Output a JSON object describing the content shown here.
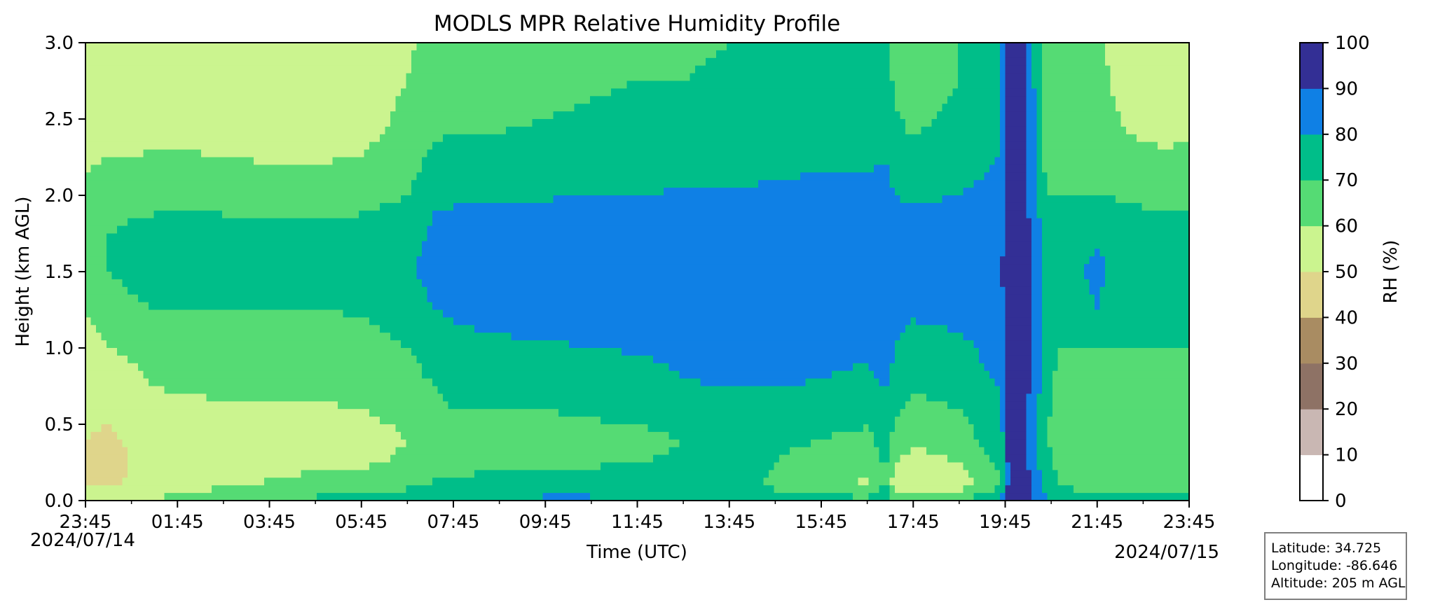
{
  "chart_data": {
    "type": "heatmap",
    "title": "MODLS MPR Relative Humidity Profile",
    "xlabel": "Time (UTC)",
    "ylabel": "Height (km AGL)",
    "x_ticks": [
      "23:45",
      "01:45",
      "03:45",
      "05:45",
      "07:45",
      "09:45",
      "11:45",
      "13:45",
      "15:45",
      "17:45",
      "19:45",
      "21:45",
      "23:45"
    ],
    "x_start_date": "2024/07/14",
    "x_end_date": "2024/07/15",
    "y_ticks": [
      "0.0",
      "0.5",
      "1.0",
      "1.5",
      "2.0",
      "2.5",
      "3.0"
    ],
    "ylim": [
      0,
      3.0
    ],
    "colorbar": {
      "label": "RH (%)",
      "ticks": [
        "0",
        "10",
        "20",
        "30",
        "40",
        "50",
        "60",
        "70",
        "80",
        "90",
        "100"
      ],
      "levels": [
        0,
        10,
        20,
        30,
        40,
        50,
        60,
        70,
        80,
        90,
        100
      ],
      "colors": [
        "#ffffff",
        "#c9b7b3",
        "#8e7265",
        "#a98c62",
        "#dfd58b",
        "#cbf48f",
        "#55db74",
        "#00be89",
        "#0f80e5",
        "#332f95"
      ]
    },
    "rh_grid": {
      "times_h": [
        0,
        0.5,
        1.0,
        1.5,
        2.0,
        3.0,
        4.0,
        5.0,
        6.0,
        7.0,
        7.4,
        7.6,
        8.0,
        9.0,
        10.0,
        11.0,
        12.0,
        13.0,
        14.0,
        15.0,
        16.0,
        17.0,
        17.4,
        17.6,
        18.0,
        19.0,
        19.9,
        20.1,
        20.4,
        20.9,
        21.2,
        21.6,
        22.0,
        22.5,
        23.0,
        23.5,
        24.0
      ],
      "heights_km": [
        0.0,
        0.1,
        0.25,
        0.4,
        0.6,
        0.8,
        1.0,
        1.25,
        1.5,
        1.75,
        2.0,
        2.25,
        2.5,
        2.75,
        3.0
      ],
      "rh": [
        [
          62,
          48,
          46,
          50,
          53,
          55,
          57,
          60,
          64,
          66,
          63,
          58,
          54,
          51,
          52
        ],
        [
          60,
          47,
          44,
          48,
          52,
          55,
          60,
          65,
          70,
          70,
          65,
          60,
          55,
          52,
          53
        ],
        [
          58,
          52,
          50,
          53,
          55,
          58,
          62,
          68,
          73,
          72,
          66,
          60,
          55,
          52,
          53
        ],
        [
          59,
          54,
          55,
          56,
          58,
          61,
          64,
          70,
          74,
          73,
          67,
          61,
          56,
          54,
          55
        ],
        [
          64,
          57,
          56,
          56,
          59,
          61,
          64,
          70,
          74,
          73,
          67,
          61,
          56,
          53,
          54
        ],
        [
          68,
          58,
          56,
          56,
          59,
          62,
          64,
          70,
          74,
          73,
          67,
          60,
          55,
          52,
          51
        ],
        [
          70,
          61,
          57,
          56,
          59,
          62,
          64,
          70,
          75,
          73,
          66,
          59,
          54,
          51,
          50
        ],
        [
          72,
          64,
          57,
          55,
          59,
          63,
          64,
          70,
          75,
          73,
          66,
          59,
          53,
          50,
          50
        ],
        [
          74,
          66,
          58,
          56,
          60,
          64,
          65,
          71,
          76,
          74,
          66,
          60,
          55,
          53,
          55
        ],
        [
          76,
          68,
          62,
          60,
          63,
          67,
          70,
          76,
          78,
          77,
          70,
          66,
          63,
          60,
          58
        ],
        [
          78,
          70,
          64,
          63,
          66,
          70,
          72,
          78,
          82,
          80,
          74,
          70,
          67,
          64,
          62
        ],
        [
          79,
          71,
          66,
          65,
          68,
          71,
          73,
          80,
          85,
          84,
          76,
          71,
          68,
          66,
          64
        ],
        [
          80,
          72,
          67,
          66,
          70,
          73,
          76,
          82,
          86,
          85,
          78,
          72,
          69,
          66,
          64
        ],
        [
          81,
          73,
          68,
          67,
          70,
          74,
          78,
          84,
          87,
          86,
          79,
          72,
          69,
          67,
          65
        ],
        [
          82,
          74,
          69,
          68,
          70,
          75,
          79,
          84,
          88,
          87,
          79,
          73,
          70,
          68,
          66
        ],
        [
          82,
          74,
          69,
          68,
          71,
          75,
          80,
          85,
          88,
          87,
          80,
          74,
          71,
          69,
          68
        ],
        [
          81,
          74,
          70,
          68,
          72,
          76,
          81,
          85,
          88,
          87,
          80,
          74,
          72,
          70,
          69
        ],
        [
          79,
          74,
          71,
          70,
          75,
          80,
          83,
          86,
          88,
          87,
          81,
          75,
          72,
          70,
          69
        ],
        [
          76,
          72,
          72,
          72,
          76,
          82,
          84,
          87,
          88,
          86,
          81,
          75,
          72,
          71,
          70
        ],
        [
          73,
          69,
          70,
          72,
          76,
          82,
          84,
          86,
          88,
          86,
          82,
          77,
          74,
          72,
          71
        ],
        [
          74,
          66,
          66,
          70,
          74,
          80,
          83,
          86,
          88,
          87,
          83,
          78,
          75,
          73,
          72
        ],
        [
          73,
          58,
          62,
          68,
          73,
          78,
          82,
          86,
          89,
          88,
          83,
          78,
          76,
          74,
          72
        ],
        [
          80,
          70,
          72,
          74,
          78,
          82,
          86,
          88,
          88,
          87,
          84,
          80,
          77,
          75,
          73
        ],
        [
          70,
          55,
          60,
          66,
          72,
          77,
          80,
          85,
          88,
          86,
          80,
          74,
          71,
          68,
          66
        ],
        [
          68,
          50,
          55,
          63,
          68,
          72,
          75,
          82,
          87,
          85,
          78,
          72,
          68,
          65,
          64
        ],
        [
          70,
          55,
          60,
          66,
          70,
          74,
          77,
          84,
          88,
          86,
          80,
          75,
          72,
          70,
          70
        ],
        [
          78,
          70,
          72,
          75,
          78,
          82,
          85,
          88,
          89,
          88,
          84,
          80,
          78,
          76,
          76
        ],
        [
          95,
          95,
          95,
          95,
          95,
          95,
          95,
          95,
          95,
          95,
          95,
          95,
          95,
          95,
          95
        ],
        [
          95,
          95,
          95,
          95,
          95,
          95,
          95,
          95,
          95,
          95,
          95,
          95,
          95,
          95,
          95
        ],
        [
          82,
          75,
          72,
          70,
          72,
          74,
          75,
          76,
          77,
          75,
          70,
          66,
          63,
          62,
          62
        ],
        [
          76,
          70,
          68,
          66,
          66,
          66,
          70,
          74,
          75,
          74,
          70,
          66,
          64,
          62,
          62
        ],
        [
          74,
          68,
          67,
          66,
          65,
          66,
          70,
          76,
          80,
          76,
          70,
          66,
          63,
          62,
          62
        ],
        [
          74,
          67,
          65,
          64,
          66,
          68,
          70,
          80,
          82,
          78,
          70,
          67,
          64,
          62,
          62
        ],
        [
          74,
          68,
          66,
          64,
          66,
          68,
          70,
          74,
          78,
          76,
          69,
          64,
          60,
          58,
          57
        ],
        [
          74,
          68,
          66,
          64,
          66,
          68,
          70,
          74,
          76,
          74,
          68,
          62,
          56,
          55,
          55
        ],
        [
          74,
          68,
          65,
          62,
          64,
          67,
          70,
          74,
          76,
          74,
          68,
          62,
          55,
          54,
          55
        ],
        [
          74,
          68,
          65,
          62,
          64,
          68,
          70,
          74,
          76,
          74,
          68,
          62,
          56,
          55,
          56
        ]
      ]
    },
    "legend_placement": "none",
    "grid": false
  },
  "info_box": {
    "latitude": "Latitude: 34.725",
    "longitude": "Longitude: -86.646",
    "altitude": "Altitude: 205 m AGL"
  }
}
